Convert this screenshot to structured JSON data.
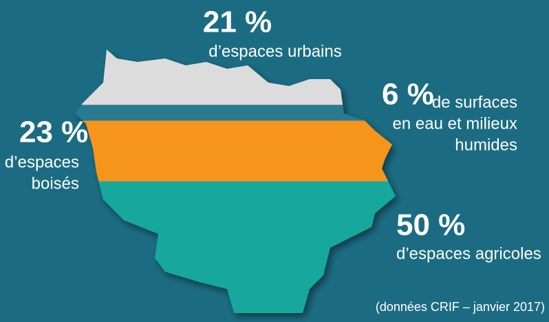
{
  "chart_data": {
    "type": "bands",
    "categories": [
      [
        "d’espaces urbains"
      ],
      [
        "de surfaces",
        "en eau et milieux",
        "humides"
      ],
      [
        "d’espaces",
        "boisés"
      ],
      [
        "d’espaces agricoles"
      ]
    ],
    "values": [
      21,
      6,
      23,
      50
    ],
    "value_labels": [
      "21 %",
      "6 %",
      "23 %",
      "50 %"
    ],
    "colors": [
      "#dcdcdc",
      "#2a7a91",
      "#f7941d",
      "#14a89c"
    ],
    "note": "(données CRIF – janvier 2017)"
  }
}
